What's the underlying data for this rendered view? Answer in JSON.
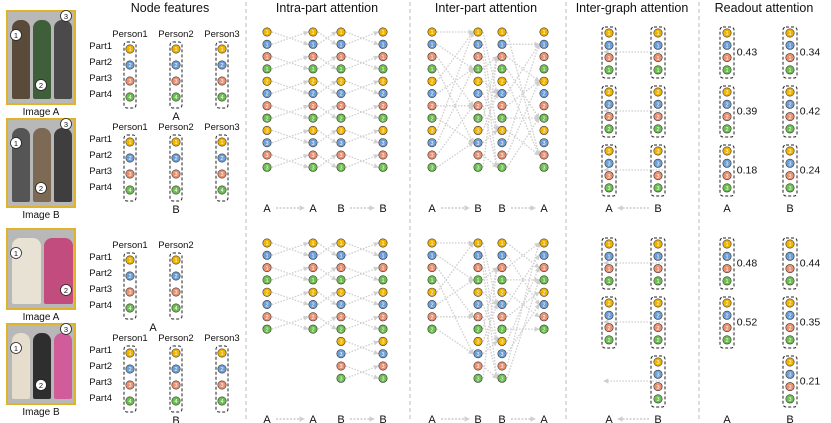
{
  "headings": {
    "node_features": "Node features",
    "intra_part": "Intra-part attention",
    "inter_part": "Inter-part attention",
    "inter_graph": "Inter-graph attention",
    "readout": "Readout attention"
  },
  "part_labels": [
    "Part1",
    "Part2",
    "Part3",
    "Part4"
  ],
  "node_colors": [
    "#f0b400",
    "#6d9fd6",
    "#ea9070",
    "#6cbf4e"
  ],
  "edge_color": "#d0d0d0",
  "examples": [
    {
      "images": [
        {
          "caption": "Image A",
          "persons": [
            "Person1",
            "Person2",
            "Person3"
          ],
          "graph_label": "A",
          "markers": [
            {
              "num": "1"
            },
            {
              "num": "2"
            },
            {
              "num": "3"
            }
          ]
        },
        {
          "caption": "Image B",
          "persons": [
            "Person1",
            "Person2",
            "Person3"
          ],
          "graph_label": "B",
          "markers": [
            {
              "num": "1"
            },
            {
              "num": "2"
            },
            {
              "num": "3"
            }
          ]
        }
      ],
      "readout_a": [
        "0.43",
        "0.39",
        "0.18"
      ],
      "readout_b": [
        "0.34",
        "0.42",
        "0.24"
      ],
      "axis_labels": {
        "intra": [
          "A",
          "A",
          "B",
          "B"
        ],
        "inter": [
          "A",
          "B",
          "B",
          "A"
        ],
        "graph": [
          "A",
          "B"
        ],
        "readout": [
          "A",
          "B"
        ]
      }
    },
    {
      "images": [
        {
          "caption": "Image A",
          "persons": [
            "Person1",
            "Person2"
          ],
          "graph_label": "A",
          "markers": [
            {
              "num": "1"
            },
            {
              "num": "2"
            }
          ]
        },
        {
          "caption": "Image B",
          "persons": [
            "Person1",
            "Person2",
            "Person3"
          ],
          "graph_label": "B",
          "markers": [
            {
              "num": "1"
            },
            {
              "num": "2"
            },
            {
              "num": "3"
            }
          ]
        }
      ],
      "readout_a": [
        "0.48",
        "0.52"
      ],
      "readout_b": [
        "0.44",
        "0.35",
        "0.21"
      ],
      "axis_labels": {
        "intra": [
          "A",
          "A",
          "B",
          "B"
        ],
        "inter": [
          "A",
          "B",
          "B",
          "A"
        ],
        "graph": [
          "A",
          "B"
        ],
        "readout": [
          "A",
          "B"
        ]
      }
    }
  ]
}
